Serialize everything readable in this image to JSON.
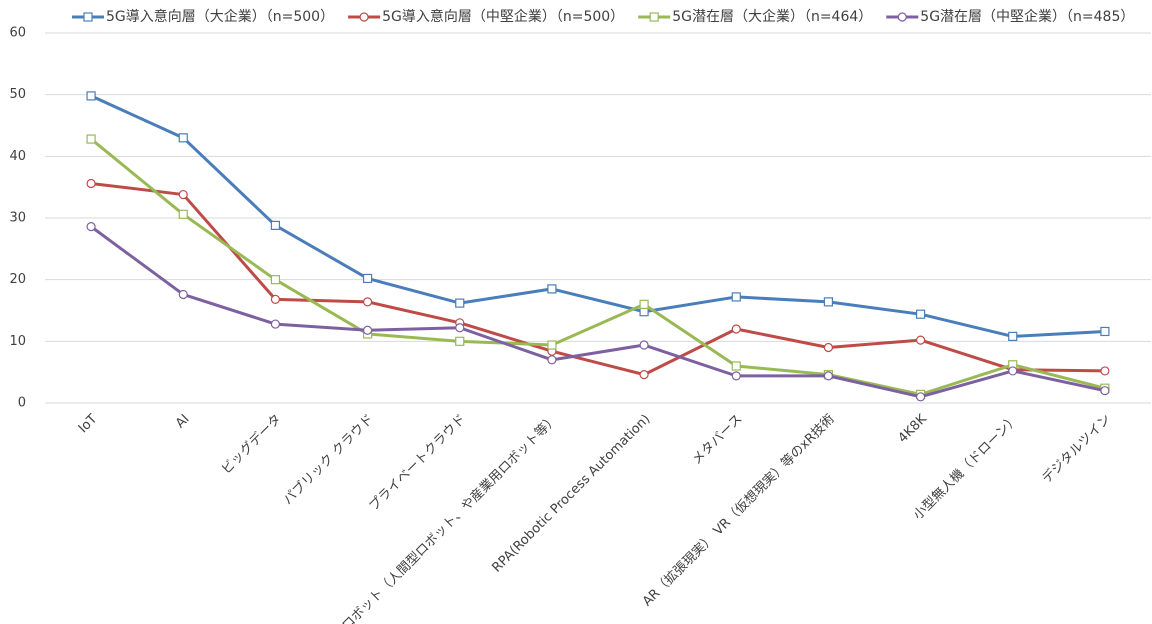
{
  "chart_data": {
    "type": "line",
    "categories": [
      "IoT",
      "AI",
      "ビッグデータ",
      "パブリック クラウド",
      "プライベートクラウド",
      "ロボット（人間型ロボット、や産業用ロボット等）",
      "RPA(Robotic Process Automation)",
      "メタバース",
      "AR（拡張現実） VR（仮想現実）等のxR技術",
      "4K8K",
      "小型無人機（ドローン）",
      "デジタルツイン"
    ],
    "series": [
      {
        "name": "5G導入意向層（大企業）（n=500）",
        "color": "#4a7ebb",
        "marker": "square",
        "values": [
          49.8,
          43,
          28.8,
          20.2,
          16.2,
          18.5,
          14.8,
          17.2,
          16.4,
          14.4,
          10.8,
          11.6
        ]
      },
      {
        "name": "5G導入意向層（中堅企業）（n=500）",
        "color": "#be4b48",
        "marker": "circle",
        "values": [
          35.6,
          33.8,
          16.8,
          16.4,
          13.0,
          8.4,
          4.6,
          12.0,
          9.0,
          10.2,
          5.4,
          5.2
        ]
      },
      {
        "name": "5G潜在層（大企業）（n=464）",
        "color": "#98b954",
        "marker": "square",
        "values": [
          42.8,
          30.6,
          20.0,
          11.2,
          10.0,
          9.4,
          16.0,
          6.0,
          4.6,
          1.4,
          6.2,
          2.4
        ]
      },
      {
        "name": "5G潜在層（中堅企業）（n=485）",
        "color": "#7d60a0",
        "marker": "circle",
        "values": [
          28.6,
          17.6,
          12.8,
          11.8,
          12.2,
          7.0,
          9.4,
          4.4,
          4.4,
          1.0,
          5.2,
          2.0
        ]
      }
    ],
    "ylim": [
      0,
      60
    ],
    "yticks": [
      0,
      10,
      20,
      30,
      40,
      50,
      60
    ],
    "grid": true,
    "legend": "top"
  }
}
